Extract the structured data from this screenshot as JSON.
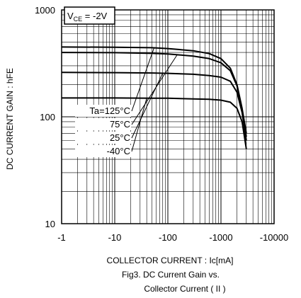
{
  "chart_data": {
    "type": "line",
    "x_scale": "log",
    "y_scale": "log",
    "x_direction": "negative",
    "xlim": [
      -1,
      -10000
    ],
    "ylim": [
      10,
      1000
    ],
    "x_tick_labels": [
      "-1",
      "-10",
      "-100",
      "-1000",
      "-10000"
    ],
    "y_tick_labels": [
      "10",
      "100",
      "1000"
    ],
    "grid": true,
    "xlabel": "COLLECTOR CURRENT : Ic[mA]",
    "ylabel": "DC CURRENT GAIN : hFE",
    "condition": {
      "main": "V",
      "sub": "CE",
      "rest": " = -2V"
    },
    "caption_line1": "Fig3. DC Current Gain vs.",
    "caption_line2": "Collector Current ( II )",
    "series": [
      {
        "name": "Ta=125°C",
        "x": [
          -1,
          -10,
          -50,
          -100,
          -300,
          -600,
          -1000,
          -1500,
          -2000,
          -2500,
          -3000
        ],
        "y": [
          450,
          448,
          443,
          435,
          415,
          390,
          350,
          285,
          200,
          120,
          70
        ]
      },
      {
        "name": "75°C",
        "x": [
          -1,
          -10,
          -50,
          -100,
          -300,
          -600,
          -1000,
          -1500,
          -2000,
          -2500,
          -3000
        ],
        "y": [
          400,
          398,
          392,
          387,
          370,
          350,
          320,
          270,
          195,
          115,
          65
        ]
      },
      {
        "name": "25°C",
        "x": [
          -1,
          -10,
          -50,
          -100,
          -300,
          -600,
          -1000,
          -1500,
          -2000,
          -2500,
          -3000
        ],
        "y": [
          260,
          259,
          257,
          255,
          250,
          243,
          235,
          215,
          170,
          110,
          60
        ]
      },
      {
        "name": "-40°C",
        "x": [
          -1,
          -10,
          -50,
          -100,
          -300,
          -600,
          -1000,
          -1500,
          -2000,
          -2500,
          -3000
        ],
        "y": [
          150,
          150,
          149,
          149,
          147,
          146,
          143,
          137,
          120,
          90,
          50
        ]
      }
    ]
  }
}
